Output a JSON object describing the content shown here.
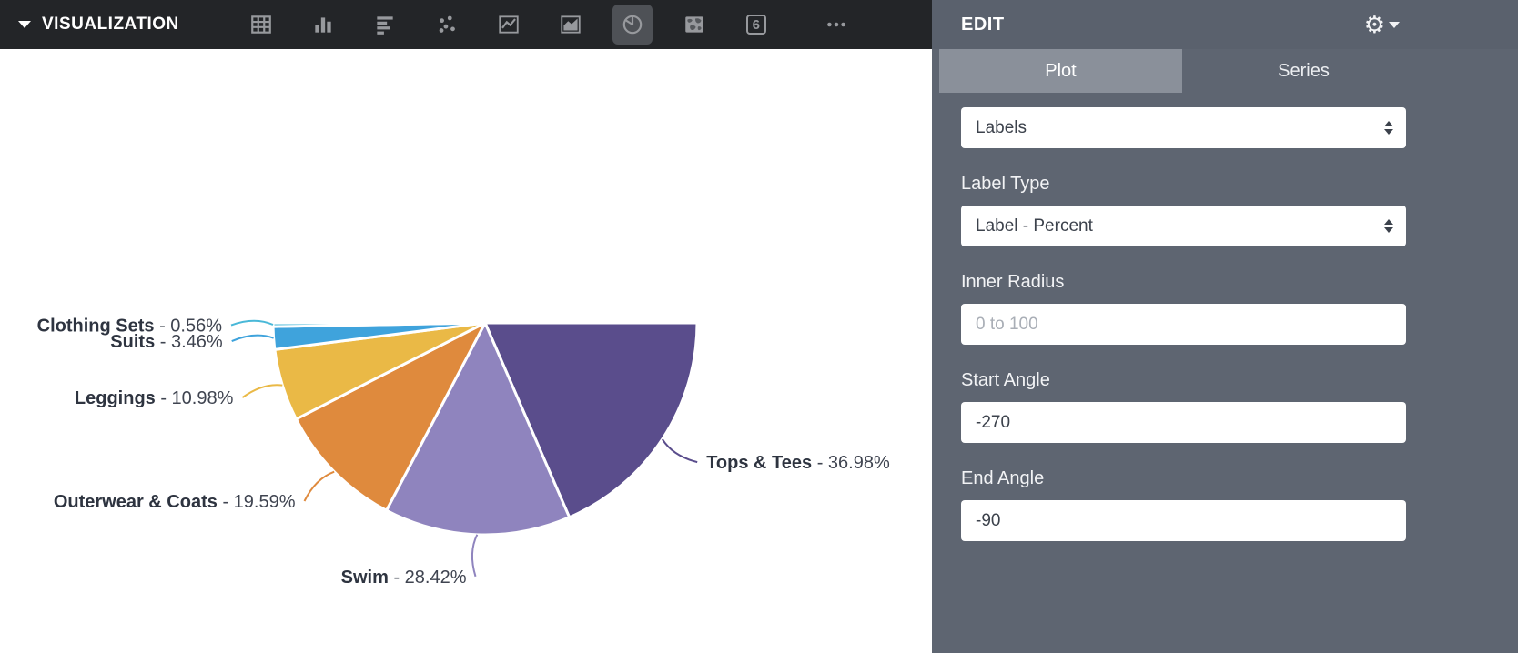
{
  "toolbar": {
    "title": "VISUALIZATION",
    "icons": [
      {
        "name": "table",
        "selected": false
      },
      {
        "name": "bar-chart",
        "selected": false
      },
      {
        "name": "horizontal-bar-chart",
        "selected": false
      },
      {
        "name": "scatter-plot",
        "selected": false
      },
      {
        "name": "line-chart",
        "selected": false
      },
      {
        "name": "area-chart",
        "selected": false
      },
      {
        "name": "pie-chart",
        "selected": true
      },
      {
        "name": "map",
        "selected": false
      },
      {
        "name": "big-number",
        "selected": false,
        "label": "6"
      },
      {
        "name": "more-options",
        "selected": false
      }
    ]
  },
  "edit_panel": {
    "title": "EDIT",
    "tabs": [
      {
        "label": "Plot",
        "selected": true
      },
      {
        "label": "Series",
        "selected": false
      }
    ],
    "fields": [
      {
        "name": "labels-select",
        "type": "select",
        "label": "",
        "value": "Labels"
      },
      {
        "name": "label-type-select",
        "type": "select",
        "label": "Label Type",
        "value": "Label - Percent"
      },
      {
        "name": "inner-radius-input",
        "type": "input",
        "label": "Inner Radius",
        "value": "",
        "placeholder": "0 to 100"
      },
      {
        "name": "start-angle-input",
        "type": "input",
        "label": "Start Angle",
        "value": "-270",
        "placeholder": ""
      },
      {
        "name": "end-angle-input",
        "type": "input",
        "label": "End Angle",
        "value": "-90",
        "placeholder": ""
      }
    ]
  },
  "chart_data": {
    "type": "pie",
    "title": "",
    "labels": [
      "Tops & Tees",
      "Swim",
      "Outerwear & Coats",
      "Leggings",
      "Suits",
      "Clothing Sets"
    ],
    "values": [
      36.98,
      28.42,
      19.59,
      10.98,
      3.46,
      0.56
    ],
    "colors": [
      "#5a4d8c",
      "#8f84be",
      "#df8a3d",
      "#eab946",
      "#3fa3dc",
      "#49b8d8"
    ],
    "label_format": "{label} - {value}%",
    "start_angle": -270,
    "end_angle": -90,
    "legend_position": "none",
    "grid": false
  }
}
